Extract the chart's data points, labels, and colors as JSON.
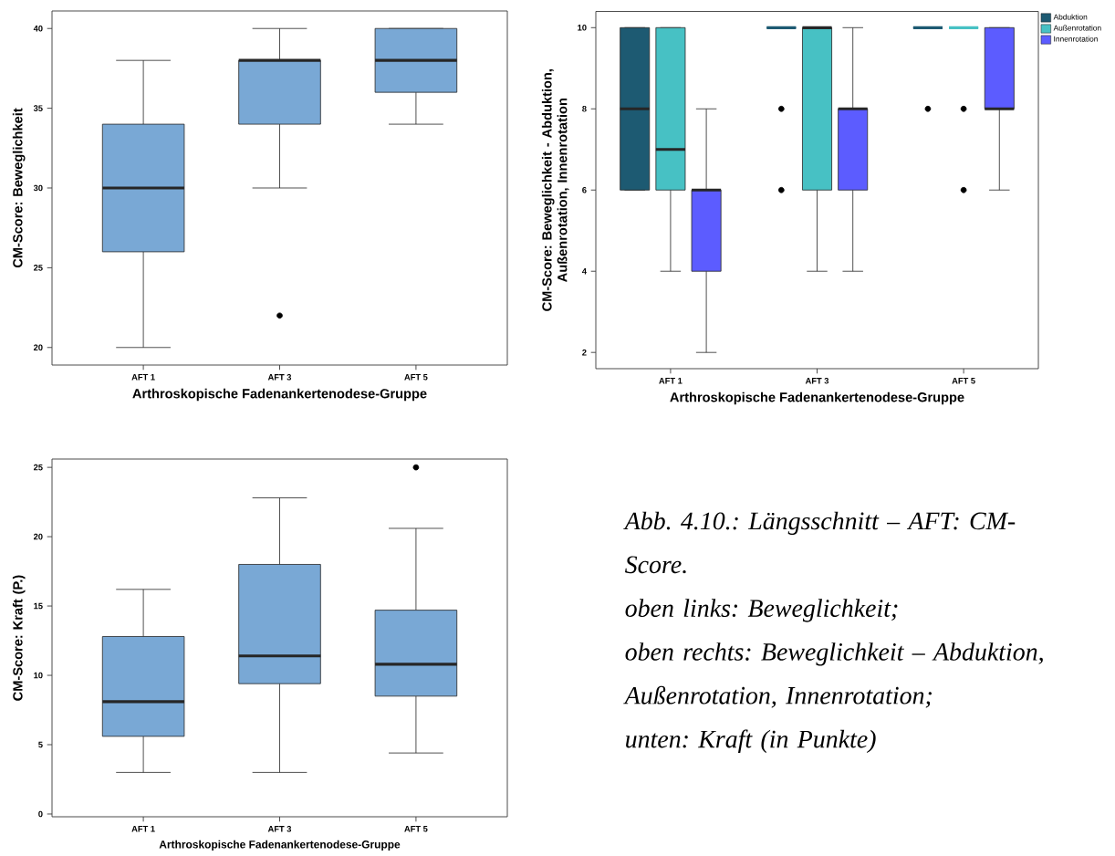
{
  "chart_data": [
    {
      "type": "box",
      "categories": [
        "AFT 1",
        "AFT 3",
        "AFT 5"
      ],
      "xlabel": "Arthroskopische Fadenankertenodese-Gruppe",
      "ylabel": "CM-Score: Beweglichkeit",
      "ylim": [
        18.9,
        41.1
      ],
      "yticks": [
        20,
        25,
        30,
        35,
        40
      ],
      "series": [
        {
          "color": "#79a8d5",
          "boxes": [
            {
              "low": 20,
              "q1": 26,
              "median": 30,
              "q3": 34,
              "high": 38
            },
            {
              "low": 30,
              "q1": 34,
              "median": 38,
              "q3": 38,
              "high": 40,
              "outliers": [
                22
              ]
            },
            {
              "low": 34,
              "q1": 36,
              "median": 38,
              "q3": 40,
              "high": 40
            }
          ]
        }
      ]
    },
    {
      "type": "box",
      "categories": [
        "AFT 1",
        "AFT 3",
        "AFT 5"
      ],
      "xlabel": "Arthroskopische Fadenankertenodese-Gruppe",
      "ylabel": "CM-Score: Beweglichkeit - Abduktion, Außenrotation, Innenrotation",
      "ylim": [
        1.6,
        10.4
      ],
      "yticks": [
        2,
        4,
        6,
        8,
        10
      ],
      "legend": "top right",
      "series": [
        {
          "name": "Abduktion",
          "color": "#1d5a72",
          "boxes": [
            {
              "low": 6,
              "q1": 6,
              "median": 8,
              "q3": 10,
              "high": 10
            },
            {
              "low": 10,
              "q1": 10,
              "median": 10,
              "q3": 10,
              "high": 10,
              "outliers": [
                8,
                6
              ]
            },
            {
              "low": 10,
              "q1": 10,
              "median": 10,
              "q3": 10,
              "high": 10,
              "outliers": [
                8
              ]
            }
          ]
        },
        {
          "name": "Außenrotation",
          "color": "#47c1c4",
          "boxes": [
            {
              "low": 4,
              "q1": 6,
              "median": 7,
              "q3": 10,
              "high": 10
            },
            {
              "low": 4,
              "q1": 6,
              "median": 10,
              "q3": 10,
              "high": 10
            },
            {
              "low": 10,
              "q1": 10,
              "median": 10,
              "q3": 10,
              "high": 10,
              "outliers": [
                8,
                6
              ]
            }
          ]
        },
        {
          "name": "Innenrotation",
          "color": "#5c5cff",
          "boxes": [
            {
              "low": 2,
              "q1": 4,
              "median": 6,
              "q3": 6,
              "high": 8
            },
            {
              "low": 4,
              "q1": 6,
              "median": 8,
              "q3": 8,
              "high": 10
            },
            {
              "low": 6,
              "q1": 8,
              "median": 8,
              "q3": 10,
              "high": 10
            }
          ]
        }
      ]
    },
    {
      "type": "box",
      "categories": [
        "AFT 1",
        "AFT 3",
        "AFT 5"
      ],
      "xlabel": "Arthroskopische Fadenankertenodese-Gruppe",
      "ylabel": "CM-Score: Kraft (P.)",
      "ylim": [
        -0.2,
        25.6
      ],
      "yticks": [
        0,
        5,
        10,
        15,
        20,
        25
      ],
      "series": [
        {
          "color": "#79a8d5",
          "boxes": [
            {
              "low": 3,
              "q1": 5.6,
              "median": 8.1,
              "q3": 12.8,
              "high": 16.2
            },
            {
              "low": 3,
              "q1": 9.4,
              "median": 11.4,
              "q3": 18,
              "high": 22.8
            },
            {
              "low": 4.4,
              "q1": 8.5,
              "median": 10.8,
              "q3": 14.7,
              "high": 20.6,
              "outliers": [
                25
              ]
            }
          ]
        }
      ]
    },
    {
      "type": "other",
      "annotations": [
        "Abb. 4.10.: Längsschnitt – AFT: CM-Score.",
        "oben links: Beweglichkeit;",
        "oben rechts: Beweglichkeit – Abduktion, Außenrotation, Innenrotation;",
        "unten: Kraft (in Punkte)"
      ]
    }
  ]
}
